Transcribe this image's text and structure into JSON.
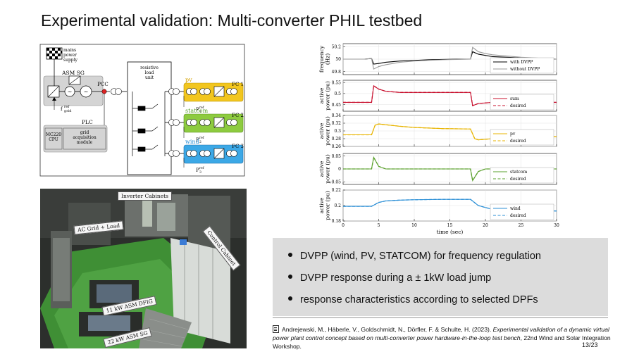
{
  "slide": {
    "title": "Experimental validation: Multi-converter PHIL testbed",
    "page_number": "13/23"
  },
  "schematic": {
    "mains": [
      "mains",
      "power",
      "supply"
    ],
    "resistive": [
      "resistive",
      "load",
      "unit"
    ],
    "asm_sg": "ASM SG",
    "pcc": "PCC",
    "plc": "PLC",
    "cpu": [
      "MC220",
      "CPU"
    ],
    "grid_module": [
      "grid",
      "acquisition",
      "module"
    ],
    "f_ref": "f",
    "f_ref_sup": "ref",
    "f_ref_sub": "grid",
    "p_ref_sup": "ref",
    "units": [
      {
        "name": "pv",
        "fc": "FC 1",
        "pref_sub": "1",
        "color": "#f2c61f"
      },
      {
        "name": "statcom",
        "fc": "FC 2",
        "pref_sub": "2",
        "color": "#8dcb3f"
      },
      {
        "name": "wind",
        "fc": "FC 3",
        "pref_sub": "3",
        "color": "#3ca8e6"
      }
    ]
  },
  "photo_labels": {
    "inverter_cabinets": "Inverter Cabinets",
    "ac_grid_load": "AC Grid + Load",
    "control_cabinet": "Control Cabinet",
    "asm_dfig": "11 kW ASM DFIG",
    "asm_sg": "22 kW ASM SG"
  },
  "bullets": [
    {
      "text": "DVPP (wind, PV, STATCOM) for frequency regulation"
    },
    {
      "text": "DVPP response during a ± 1kW load jump"
    },
    {
      "text": "response characteristics according to selected DPFs"
    }
  ],
  "citation": {
    "authors": "Andrejewski, M., Häberle, V., Goldschmidt, N., Dörfler, F. & Schulte, H. (2023). ",
    "title": "Experimental validation of a dynamic virtual power plant control concept based on multi-converter power hardware-in-the-loop test bench",
    "venue": ", 22nd Wind and Solar Integration Workshop."
  },
  "chart_data": {
    "type": "line",
    "xlabel": "time (sec)",
    "xlim": [
      0,
      30
    ],
    "xticks": [
      0,
      5,
      10,
      15,
      20,
      25,
      30
    ],
    "panels": [
      {
        "ylabel": [
          "frequency",
          "(Hz)"
        ],
        "ylim": [
          49.75,
          50.25
        ],
        "yticks": [
          49.8,
          50,
          50.2
        ],
        "legend": "bottom-right",
        "series": [
          {
            "name": "with DVPP",
            "color": "#000000",
            "dash": false,
            "points": [
              [
                0,
                50.0
              ],
              [
                1,
                50.0
              ],
              [
                2,
                50.0
              ],
              [
                3,
                50.0
              ],
              [
                4,
                50.01
              ],
              [
                4.3,
                49.92
              ],
              [
                5,
                49.93
              ],
              [
                6,
                49.95
              ],
              [
                7,
                49.96
              ],
              [
                8,
                49.97
              ],
              [
                10,
                49.98
              ],
              [
                12,
                49.99
              ],
              [
                14,
                49.995
              ],
              [
                16,
                50.0
              ],
              [
                17.9,
                50.0
              ],
              [
                18.2,
                50.12
              ],
              [
                19,
                50.08
              ],
              [
                20,
                50.06
              ],
              [
                21,
                50.04
              ],
              [
                23,
                50.03
              ],
              [
                25,
                50.02
              ],
              [
                27,
                50.01
              ],
              [
                30,
                50.0
              ]
            ]
          },
          {
            "name": "without DVPP",
            "color": "#9a9a9a",
            "dash": false,
            "points": [
              [
                0,
                50.0
              ],
              [
                1,
                50.0
              ],
              [
                2,
                50.0
              ],
              [
                3,
                50.0
              ],
              [
                4,
                50.01
              ],
              [
                4.3,
                49.84
              ],
              [
                5,
                49.88
              ],
              [
                6,
                49.91
              ],
              [
                7,
                49.93
              ],
              [
                8,
                49.95
              ],
              [
                10,
                49.97
              ],
              [
                12,
                49.98
              ],
              [
                14,
                49.99
              ],
              [
                16,
                49.995
              ],
              [
                17.9,
                50.0
              ],
              [
                18.2,
                50.19
              ],
              [
                19,
                50.12
              ],
              [
                20,
                50.09
              ],
              [
                21,
                50.07
              ],
              [
                23,
                50.05
              ],
              [
                25,
                50.03
              ],
              [
                27,
                50.02
              ],
              [
                30,
                50.0
              ]
            ]
          }
        ]
      },
      {
        "ylabel": [
          "active",
          "power (pu)"
        ],
        "ylim": [
          0.42,
          0.56
        ],
        "yticks": [
          0.45,
          0.5,
          0.55
        ],
        "legend": "right",
        "series": [
          {
            "name": "sum",
            "color": "#c8102e",
            "dash": false,
            "points": [
              [
                0,
                0.46
              ],
              [
                4,
                0.46
              ],
              [
                4.3,
                0.535
              ],
              [
                5,
                0.52
              ],
              [
                6,
                0.51
              ],
              [
                8,
                0.505
              ],
              [
                10,
                0.505
              ],
              [
                14,
                0.505
              ],
              [
                17.9,
                0.505
              ],
              [
                18.2,
                0.445
              ],
              [
                19,
                0.455
              ],
              [
                21,
                0.46
              ],
              [
                25,
                0.46
              ],
              [
                30,
                0.46
              ]
            ]
          },
          {
            "name": "desired",
            "color": "#c8102e",
            "dash": true,
            "points": [
              [
                0,
                0.46
              ],
              [
                4,
                0.46
              ],
              [
                4.3,
                0.535
              ],
              [
                5,
                0.52
              ],
              [
                6,
                0.51
              ],
              [
                8,
                0.505
              ],
              [
                10,
                0.505
              ],
              [
                14,
                0.505
              ],
              [
                17.9,
                0.505
              ],
              [
                18.2,
                0.445
              ],
              [
                19,
                0.455
              ],
              [
                21,
                0.46
              ],
              [
                25,
                0.46
              ],
              [
                30,
                0.46
              ]
            ]
          }
        ]
      },
      {
        "ylabel": [
          "active",
          "power (pu)"
        ],
        "ylim": [
          0.26,
          0.34
        ],
        "yticks": [
          0.26,
          0.28,
          0.3,
          0.32,
          0.34
        ],
        "legend": "right",
        "series": [
          {
            "name": "pv",
            "color": "#e8b400",
            "dash": false,
            "points": [
              [
                0,
                0.29
              ],
              [
                4,
                0.29
              ],
              [
                4.5,
                0.315
              ],
              [
                5,
                0.318
              ],
              [
                6,
                0.316
              ],
              [
                8,
                0.312
              ],
              [
                10,
                0.309
              ],
              [
                14,
                0.306
              ],
              [
                17.9,
                0.305
              ],
              [
                18.5,
                0.28
              ],
              [
                19,
                0.277
              ],
              [
                21,
                0.28
              ],
              [
                23,
                0.282
              ],
              [
                25,
                0.284
              ],
              [
                30,
                0.285
              ]
            ]
          },
          {
            "name": "desired",
            "color": "#e8b400",
            "dash": true,
            "points": [
              [
                0,
                0.29
              ],
              [
                4,
                0.29
              ],
              [
                4.5,
                0.315
              ],
              [
                5,
                0.318
              ],
              [
                6,
                0.316
              ],
              [
                8,
                0.312
              ],
              [
                10,
                0.309
              ],
              [
                14,
                0.306
              ],
              [
                17.9,
                0.305
              ],
              [
                18.5,
                0.28
              ],
              [
                19,
                0.277
              ],
              [
                21,
                0.28
              ],
              [
                23,
                0.282
              ],
              [
                25,
                0.284
              ],
              [
                30,
                0.285
              ]
            ]
          }
        ]
      },
      {
        "ylabel": [
          "active",
          "power (pu)"
        ],
        "ylim": [
          -0.06,
          0.06
        ],
        "yticks": [
          -0.05,
          0,
          0.05
        ],
        "legend": "right",
        "series": [
          {
            "name": "statcom",
            "color": "#5aa02c",
            "dash": false,
            "points": [
              [
                0,
                0.0
              ],
              [
                4,
                0.0
              ],
              [
                4.3,
                0.045
              ],
              [
                5,
                0.01
              ],
              [
                6,
                0.0
              ],
              [
                10,
                0.0
              ],
              [
                17.9,
                0.0
              ],
              [
                18.2,
                -0.045
              ],
              [
                19,
                -0.01
              ],
              [
                20,
                0.0
              ],
              [
                30,
                0.0
              ]
            ]
          },
          {
            "name": "desired",
            "color": "#5aa02c",
            "dash": true,
            "points": [
              [
                0,
                0.0
              ],
              [
                4,
                0.0
              ],
              [
                4.3,
                0.045
              ],
              [
                5,
                0.01
              ],
              [
                6,
                0.0
              ],
              [
                10,
                0.0
              ],
              [
                17.9,
                0.0
              ],
              [
                18.2,
                -0.045
              ],
              [
                19,
                -0.01
              ],
              [
                20,
                0.0
              ],
              [
                30,
                0.0
              ]
            ]
          }
        ]
      },
      {
        "ylabel": [
          "active",
          "power (pu)"
        ],
        "ylim": [
          0.18,
          0.22
        ],
        "yticks": [
          0.18,
          0.2,
          0.22
        ],
        "legend": "right",
        "series": [
          {
            "name": "wind",
            "color": "#2b8fd6",
            "dash": false,
            "points": [
              [
                0,
                0.199
              ],
              [
                4,
                0.199
              ],
              [
                5,
                0.204
              ],
              [
                6,
                0.206
              ],
              [
                8,
                0.207
              ],
              [
                10,
                0.2075
              ],
              [
                14,
                0.208
              ],
              [
                17.9,
                0.208
              ],
              [
                19,
                0.2
              ],
              [
                21,
                0.195
              ],
              [
                23,
                0.193
              ],
              [
                25,
                0.193
              ],
              [
                30,
                0.193
              ]
            ]
          },
          {
            "name": "desired",
            "color": "#2b8fd6",
            "dash": true,
            "points": [
              [
                0,
                0.199
              ],
              [
                4,
                0.199
              ],
              [
                5,
                0.204
              ],
              [
                6,
                0.206
              ],
              [
                8,
                0.207
              ],
              [
                10,
                0.2075
              ],
              [
                14,
                0.208
              ],
              [
                17.9,
                0.208
              ],
              [
                19,
                0.2
              ],
              [
                21,
                0.195
              ],
              [
                23,
                0.193
              ],
              [
                25,
                0.193
              ],
              [
                30,
                0.193
              ]
            ]
          }
        ]
      }
    ]
  }
}
